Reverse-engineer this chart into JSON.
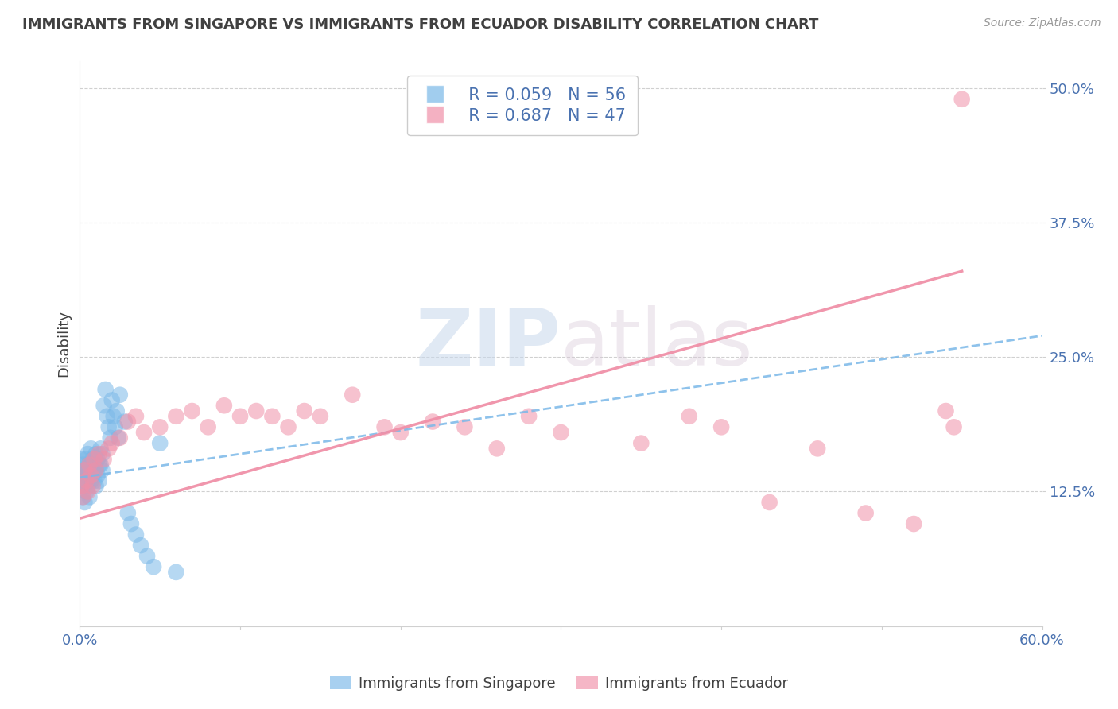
{
  "title": "IMMIGRANTS FROM SINGAPORE VS IMMIGRANTS FROM ECUADOR DISABILITY CORRELATION CHART",
  "source": "Source: ZipAtlas.com",
  "ylabel": "Disability",
  "xlabel": "",
  "xlim": [
    0.0,
    0.6
  ],
  "ylim": [
    0.0,
    0.525
  ],
  "ytick_labels": [
    "12.5%",
    "25.0%",
    "37.5%",
    "50.0%"
  ],
  "ytick_vals": [
    0.125,
    0.25,
    0.375,
    0.5
  ],
  "watermark_zip": "ZIP",
  "watermark_atlas": "atlas",
  "singapore_color": "#7ab8e8",
  "ecuador_color": "#f090a8",
  "singapore_R": 0.059,
  "singapore_N": 56,
  "ecuador_R": 0.687,
  "ecuador_N": 47,
  "singapore_scatter_x": [
    0.001,
    0.001,
    0.001,
    0.002,
    0.002,
    0.002,
    0.003,
    0.003,
    0.003,
    0.004,
    0.004,
    0.004,
    0.005,
    0.005,
    0.005,
    0.006,
    0.006,
    0.006,
    0.007,
    0.007,
    0.007,
    0.008,
    0.008,
    0.009,
    0.009,
    0.01,
    0.01,
    0.01,
    0.011,
    0.011,
    0.012,
    0.012,
    0.013,
    0.013,
    0.014,
    0.014,
    0.015,
    0.016,
    0.017,
    0.018,
    0.019,
    0.02,
    0.021,
    0.022,
    0.023,
    0.024,
    0.025,
    0.028,
    0.03,
    0.032,
    0.035,
    0.038,
    0.042,
    0.046,
    0.05,
    0.06
  ],
  "singapore_scatter_y": [
    0.155,
    0.14,
    0.13,
    0.15,
    0.135,
    0.12,
    0.145,
    0.13,
    0.115,
    0.155,
    0.14,
    0.125,
    0.16,
    0.145,
    0.13,
    0.15,
    0.135,
    0.12,
    0.165,
    0.15,
    0.135,
    0.155,
    0.14,
    0.15,
    0.135,
    0.16,
    0.145,
    0.13,
    0.155,
    0.14,
    0.15,
    0.135,
    0.165,
    0.15,
    0.16,
    0.145,
    0.205,
    0.22,
    0.195,
    0.185,
    0.175,
    0.21,
    0.195,
    0.185,
    0.2,
    0.175,
    0.215,
    0.19,
    0.105,
    0.095,
    0.085,
    0.075,
    0.065,
    0.055,
    0.17,
    0.05
  ],
  "ecuador_scatter_x": [
    0.001,
    0.002,
    0.003,
    0.004,
    0.005,
    0.006,
    0.007,
    0.008,
    0.009,
    0.01,
    0.012,
    0.015,
    0.018,
    0.02,
    0.025,
    0.03,
    0.035,
    0.04,
    0.05,
    0.06,
    0.07,
    0.08,
    0.09,
    0.1,
    0.11,
    0.12,
    0.13,
    0.14,
    0.15,
    0.17,
    0.19,
    0.2,
    0.22,
    0.24,
    0.26,
    0.28,
    0.3,
    0.35,
    0.38,
    0.4,
    0.43,
    0.46,
    0.49,
    0.52,
    0.54,
    0.545,
    0.55
  ],
  "ecuador_scatter_y": [
    0.13,
    0.12,
    0.145,
    0.135,
    0.125,
    0.15,
    0.14,
    0.13,
    0.155,
    0.145,
    0.16,
    0.155,
    0.165,
    0.17,
    0.175,
    0.19,
    0.195,
    0.18,
    0.185,
    0.195,
    0.2,
    0.185,
    0.205,
    0.195,
    0.2,
    0.195,
    0.185,
    0.2,
    0.195,
    0.215,
    0.185,
    0.18,
    0.19,
    0.185,
    0.165,
    0.195,
    0.18,
    0.17,
    0.195,
    0.185,
    0.115,
    0.165,
    0.105,
    0.095,
    0.2,
    0.185,
    0.49
  ],
  "singapore_trend_x": [
    0.0,
    0.6
  ],
  "singapore_trend_y": [
    0.138,
    0.27
  ],
  "ecuador_trend_x": [
    0.0,
    0.55
  ],
  "ecuador_trend_y": [
    0.1,
    0.33
  ],
  "background_color": "#ffffff",
  "grid_color": "#d0d0d0",
  "title_color": "#404040",
  "tick_color": "#4a72b0",
  "legend_text_color": "#4a72b0"
}
